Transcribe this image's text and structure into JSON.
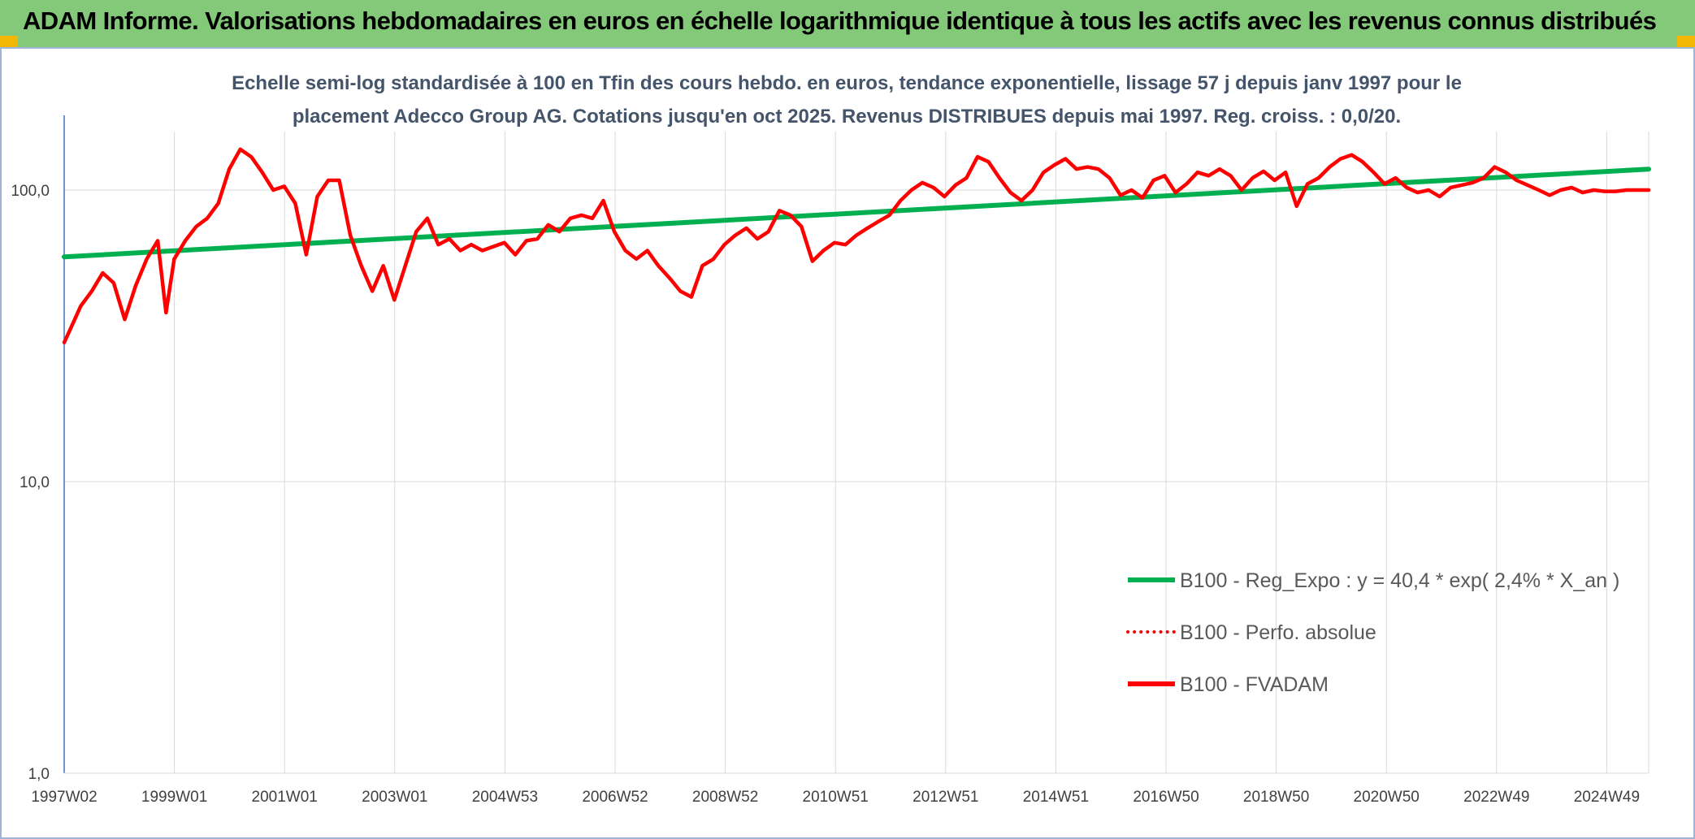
{
  "header": {
    "title": "ADAM Informe. Valorisations hebdomadaires en euros en échelle logarithmique identique à tous les actifs avec les revenus connus distribués"
  },
  "colors": {
    "header_bg": "#84c87a",
    "regression_line": "#00b050",
    "fvadam_line": "#ff0000",
    "perfo_line": "#ff0000",
    "grid": "#d9d9d9",
    "corner_accent": "#f2b705"
  },
  "chart_data": {
    "type": "line",
    "subtitle_line1": "Echelle semi-log standardisée à 100 en Tfin des cours hebdo. en euros, tendance exponentielle, lissage 57 j depuis janv 1997 pour le",
    "subtitle_line2": "placement Adecco Group AG. Cotations jusqu'en oct 2025. Revenus DISTRIBUES depuis mai 1997. Reg. croiss. : 0,0/20.",
    "y_scale": "log",
    "ylim": [
      1,
      200
    ],
    "y_ticks": [
      "1,0",
      "10,0",
      "100,0"
    ],
    "x_range": [
      1997.0,
      2025.8
    ],
    "x_tick_labels": [
      "1997W02",
      "1999W01",
      "2001W01",
      "2003W01",
      "2004W53",
      "2006W52",
      "2008W52",
      "2010W51",
      "2012W51",
      "2014W51",
      "2016W50",
      "2018W50",
      "2020W50",
      "2022W49",
      "2024W49"
    ],
    "grid": "vertical",
    "legend_position": "right-center",
    "series": [
      {
        "name": "B100 - Reg_Expo : y = 40,4 * exp( 2,4% *  X_an )",
        "style": "solid-green",
        "x": [
          1997.0,
          2025.8
        ],
        "y": [
          59,
          118
        ]
      },
      {
        "name": "B100 - Perfo. absolue",
        "style": "dotted-red",
        "x": [],
        "y": []
      },
      {
        "name": "B100 - FVADAM",
        "style": "solid-red",
        "x": [
          1997.0,
          1997.1,
          1997.3,
          1997.5,
          1997.7,
          1997.9,
          1998.1,
          1998.3,
          1998.5,
          1998.7,
          1998.85,
          1999.0,
          1999.2,
          1999.4,
          1999.6,
          1999.8,
          2000.0,
          2000.2,
          2000.4,
          2000.6,
          2000.8,
          2001.0,
          2001.2,
          2001.4,
          2001.6,
          2001.8,
          2002.0,
          2002.2,
          2002.4,
          2002.6,
          2002.8,
          2003.0,
          2003.2,
          2003.4,
          2003.6,
          2003.8,
          2004.0,
          2004.2,
          2004.4,
          2004.6,
          2004.8,
          2005.0,
          2005.2,
          2005.4,
          2005.6,
          2005.8,
          2006.0,
          2006.2,
          2006.4,
          2006.6,
          2006.8,
          2007.0,
          2007.2,
          2007.4,
          2007.6,
          2007.8,
          2008.0,
          2008.2,
          2008.4,
          2008.6,
          2008.8,
          2009.0,
          2009.2,
          2009.4,
          2009.6,
          2009.8,
          2010.0,
          2010.2,
          2010.4,
          2010.6,
          2010.8,
          2011.0,
          2011.2,
          2011.4,
          2011.6,
          2011.8,
          2012.0,
          2012.2,
          2012.4,
          2012.6,
          2012.8,
          2013.0,
          2013.2,
          2013.4,
          2013.6,
          2013.8,
          2014.0,
          2014.2,
          2014.4,
          2014.6,
          2014.8,
          2015.0,
          2015.2,
          2015.4,
          2015.6,
          2015.8,
          2016.0,
          2016.2,
          2016.4,
          2016.6,
          2016.8,
          2017.0,
          2017.2,
          2017.4,
          2017.6,
          2017.8,
          2018.0,
          2018.2,
          2018.4,
          2018.6,
          2018.8,
          2019.0,
          2019.2,
          2019.4,
          2019.6,
          2019.8,
          2020.0,
          2020.2,
          2020.4,
          2020.6,
          2020.8,
          2021.0,
          2021.2,
          2021.4,
          2021.6,
          2021.8,
          2022.0,
          2022.2,
          2022.4,
          2022.6,
          2022.8,
          2023.0,
          2023.2,
          2023.4,
          2023.6,
          2023.8,
          2024.0,
          2024.2,
          2024.4,
          2024.6,
          2024.8,
          2025.0,
          2025.2,
          2025.4,
          2025.6,
          2025.8
        ],
        "y": [
          30,
          33,
          40,
          45,
          52,
          48,
          36,
          47,
          58,
          67,
          38,
          58,
          67,
          75,
          80,
          90,
          118,
          138,
          130,
          115,
          100,
          103,
          90,
          60,
          95,
          108,
          108,
          70,
          55,
          45,
          55,
          42,
          55,
          72,
          80,
          65,
          68,
          62,
          65,
          62,
          64,
          66,
          60,
          67,
          68,
          76,
          72,
          80,
          82,
          80,
          92,
          72,
          62,
          58,
          62,
          55,
          50,
          45,
          43,
          55,
          58,
          65,
          70,
          74,
          68,
          72,
          85,
          82,
          75,
          57,
          62,
          66,
          65,
          70,
          74,
          78,
          82,
          92,
          100,
          106,
          102,
          95,
          104,
          110,
          130,
          125,
          110,
          98,
          92,
          100,
          115,
          122,
          128,
          118,
          120,
          118,
          110,
          96,
          100,
          94,
          108,
          112,
          98,
          105,
          115,
          112,
          118,
          112,
          100,
          110,
          116,
          108,
          115,
          88,
          105,
          110,
          120,
          128,
          132,
          125,
          115,
          105,
          110,
          102,
          98,
          100,
          95,
          102,
          104,
          106,
          110,
          120,
          115,
          108,
          104,
          100,
          96,
          100,
          102,
          98,
          100,
          99,
          99,
          100,
          100,
          100
        ],
        "note_ignore": ""
      }
    ]
  },
  "legend": {
    "items": [
      {
        "label": "B100 - Reg_Expo : y = 40,4 * exp( 2,4% *  X_an )",
        "style": "solid-green"
      },
      {
        "label": "B100 - Perfo. absolue",
        "style": "dotted-red"
      },
      {
        "label": "B100 - FVADAM",
        "style": "solid-red"
      }
    ]
  }
}
